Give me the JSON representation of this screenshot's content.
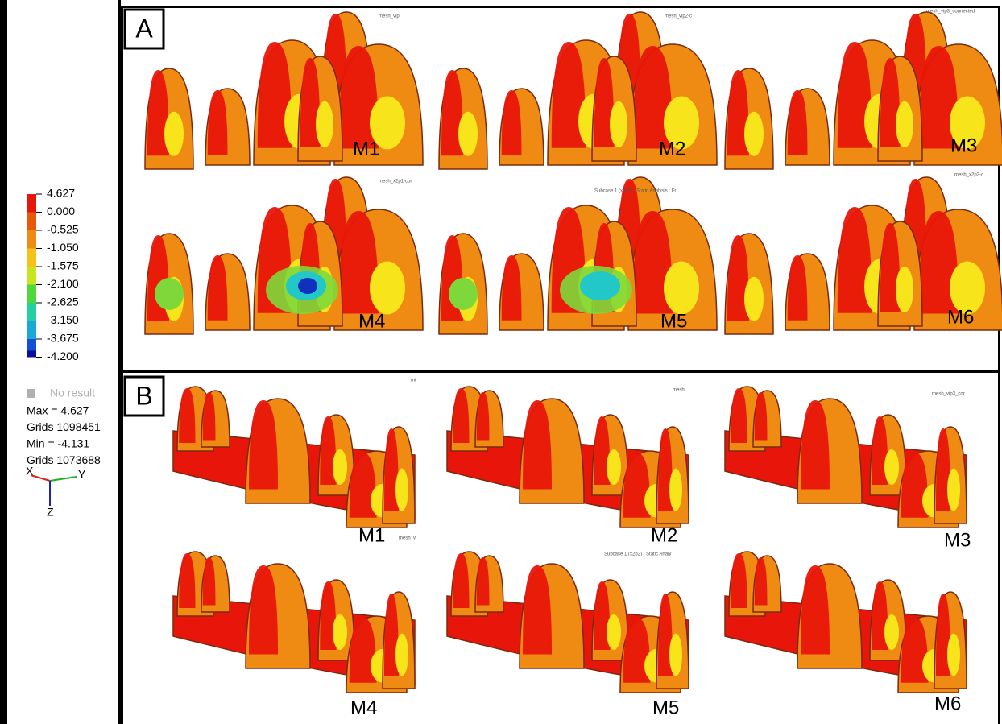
{
  "legend": {
    "values": [
      "4.627",
      "0.000",
      "-0.525",
      "-1.050",
      "-1.575",
      "-2.100",
      "-2.625",
      "-3.150",
      "-3.675",
      "-4.200"
    ],
    "no_result": "No result",
    "stats": [
      "Max = 4.627",
      "Grids 1098451",
      "Min = -4.131",
      "Grids 1073688"
    ],
    "axes": [
      "X",
      "Y",
      "Z"
    ]
  },
  "panels": [
    {
      "label": "A",
      "models": [
        "M1",
        "M2",
        "M3",
        "M4",
        "M5",
        "M6"
      ],
      "captions": [
        "mesh_vip!",
        "mesh_vip2-c",
        "mesh_vip3_connected",
        "mesh_x2p1-cor",
        "Subcase 1 (x2p2) : Static Analysis : Fr",
        "mesh_x2p3-c"
      ]
    },
    {
      "label": "B",
      "models": [
        "M1",
        "M2",
        "M3",
        "M4",
        "M5",
        "M6"
      ],
      "captions": [
        "mi",
        "mesh",
        "mesh_vip3_cor",
        "mesh_v",
        "Subcase 1 (x2p2) : Static Analy",
        ""
      ]
    }
  ]
}
